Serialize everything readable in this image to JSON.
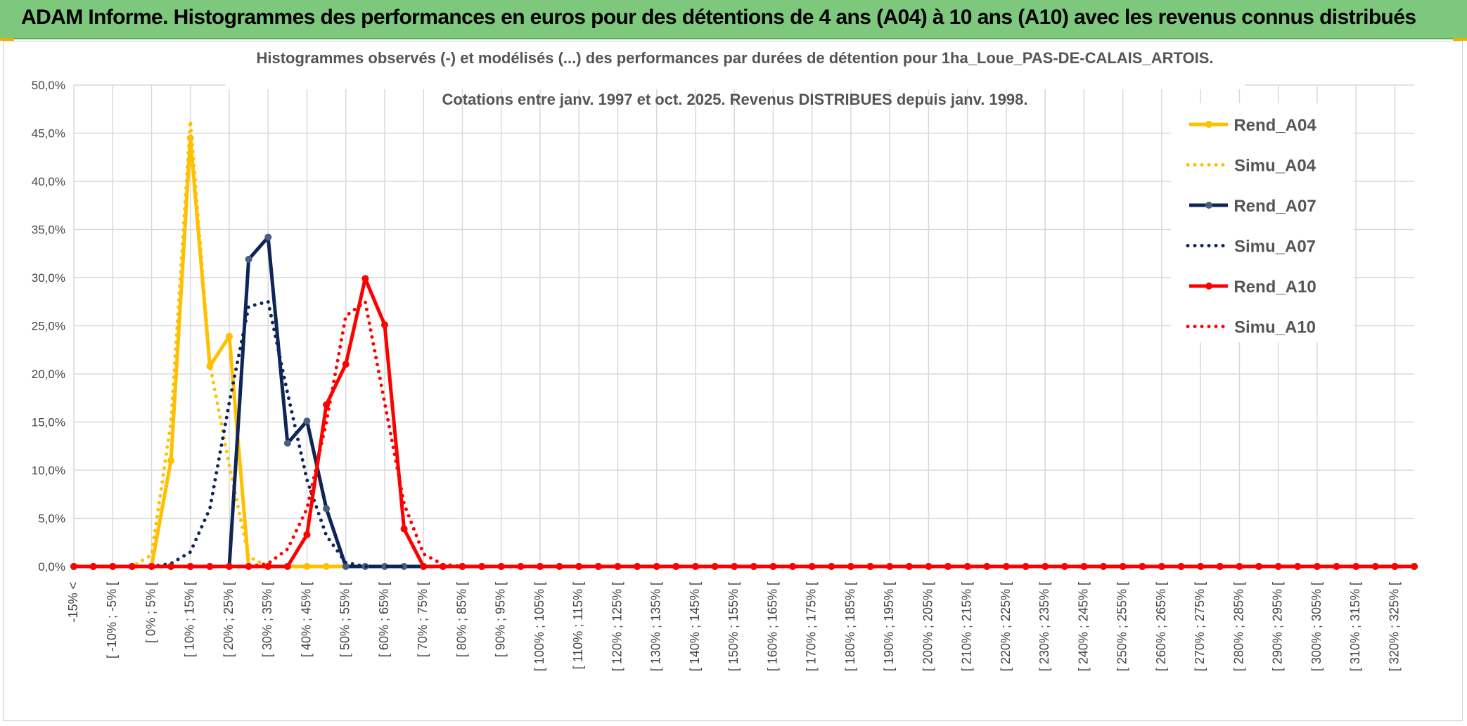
{
  "banner": {
    "title": "ADAM Informe. Histogrammes des performances en euros pour des détentions de 4 ans (A04) à 10 ans (A10) avec les revenus connus distribués"
  },
  "chart_data": {
    "type": "line",
    "title": "Histogrammes observés (-) et modélisés (...) des performances par durées de détention pour 1ha_Loue_PAS-DE-CALAIS_ARTOIS.",
    "subtitle": "Cotations entre janv. 1997 et oct. 2025. Revenus DISTRIBUES depuis janv. 1998.",
    "xlabel": "",
    "ylabel": "",
    "ylim": [
      0,
      50
    ],
    "yticks": [
      "0,0%",
      "5,0%",
      "10,0%",
      "15,0%",
      "20,0%",
      "25,0%",
      "30,0%",
      "35,0%",
      "40,0%",
      "45,0%",
      "50,0%"
    ],
    "grid": true,
    "legend_position": "right",
    "categories": [
      "-15% <",
      "[ -15% ; -10% [",
      "[ -10% ; -5% [",
      "[ -5% ; 0% [",
      "[ 0% ; 5% [",
      "[ 5% ; 10% [",
      "[ 10% ; 15% [",
      "[ 15% ; 20% [",
      "[ 20% ; 25% [",
      "[ 25% ; 30% [",
      "[ 30% ; 35% [",
      "[ 35% ; 40% [",
      "[ 40% ; 45% [",
      "[ 45% ; 50% [",
      "[ 50% ; 55% [",
      "[ 55% ; 60% [",
      "[ 60% ; 65% [",
      "[ 65% ; 70% [",
      "[ 70% ; 75% [",
      "[ 75% ; 80% [",
      "[ 80% ; 85% [",
      "[ 85% ; 90% [",
      "[ 90% ; 95% [",
      "[ 95% ; 100% [",
      "[ 100% ; 105% [",
      "[ 105% ; 110% [",
      "[ 110% ; 115% [",
      "[ 115% ; 120% [",
      "[ 120% ; 125% [",
      "[ 125% ; 130% [",
      "[ 130% ; 135% [",
      "[ 135% ; 140% [",
      "[ 140% ; 145% [",
      "[ 145% ; 150% [",
      "[ 150% ; 155% [",
      "[ 155% ; 160% [",
      "[ 160% ; 165% [",
      "[ 165% ; 170% [",
      "[ 170% ; 175% [",
      "[ 175% ; 180% [",
      "[ 180% ; 185% [",
      "[ 185% ; 190% [",
      "[ 190% ; 195% [",
      "[ 195% ; 200% [",
      "[ 200% ; 205% [",
      "[ 205% ; 210% [",
      "[ 210% ; 215% [",
      "[ 215% ; 220% [",
      "[ 220% ; 225% [",
      "[ 225% ; 230% [",
      "[ 230% ; 235% [",
      "[ 235% ; 240% [",
      "[ 240% ; 245% [",
      "[ 245% ; 250% [",
      "[ 250% ; 255% [",
      "[ 255% ; 260% [",
      "[ 260% ; 265% [",
      "[ 265% ; 270% [",
      "[ 270% ; 275% [",
      "[ 275% ; 280% [",
      "[ 280% ; 285% [",
      "[ 285% ; 290% [",
      "[ 290% ; 295% [",
      "[ 295% ; 300% [",
      "[ 300% ; 305% [",
      "[ 305% ; 310% [",
      "[ 310% ; 315% [",
      "[ 315% ; 320% [",
      "[ 320% ; 325% [",
      "[ 325% ; 330% ["
    ],
    "visible_category_labels": [
      "-15% <",
      "[ -10% ; -5% [",
      "[ 0% ; 5% [",
      "[ 10% ; 15% [",
      "[ 20% ; 25% [",
      "[ 30% ; 35% [",
      "[ 40% ; 45% [",
      "[ 50% ; 55% [",
      "[ 60% ; 65% [",
      "[ 70% ; 75% [",
      "[ 80% ; 85% [",
      "[ 90% ; 95% [",
      "[ 100% ; 105% [",
      "[ 110% ; 115% [",
      "[ 120% ; 125% [",
      "[ 130% ; 135% [",
      "[ 140% ; 145% [",
      "[ 150% ; 155% [",
      "[ 160% ; 165% [",
      "[ 170% ; 175% [",
      "[ 180% ; 185% [",
      "[ 190% ; 195% [",
      "[ 200% ; 205% [",
      "[ 210% ; 215% [",
      "[ 220% ; 225% [",
      "[ 230% ; 235% [",
      "[ 240% ; 245% [",
      "[ 250% ; 255% [",
      "[ 260% ; 265% [",
      "[ 270% ; 275% [",
      "[ 280% ; 285% [",
      "[ 290% ; 295% [",
      "[ 300% ; 305% [",
      "[ 310% ; 315% [",
      "[ 320% ; 325% ["
    ],
    "series": [
      {
        "name": "Rend_A04",
        "style": "solid",
        "color": "#ffc000",
        "values": [
          0,
          0,
          0,
          0,
          0,
          11,
          44.5,
          20.8,
          23.9,
          0,
          0,
          0,
          0,
          0,
          0,
          0,
          0,
          0,
          0,
          0,
          0,
          0,
          0,
          0,
          0,
          0,
          0,
          0,
          0,
          0,
          0,
          0,
          0,
          0,
          0,
          0,
          0,
          0,
          0,
          0,
          0,
          0,
          0,
          0,
          0,
          0,
          0,
          0,
          0,
          0,
          0,
          0,
          0,
          0,
          0,
          0,
          0,
          0,
          0,
          0,
          0,
          0,
          0,
          0,
          0,
          0,
          0,
          0,
          0,
          0
        ]
      },
      {
        "name": "Simu_A04",
        "style": "dotted",
        "color": "#ffc000",
        "values": [
          0,
          0,
          0,
          0,
          1.2,
          15,
          46.3,
          21,
          10.5,
          1,
          0,
          0,
          0,
          0,
          0,
          0,
          0,
          0,
          0,
          0,
          0,
          0,
          0,
          0,
          0,
          0,
          0,
          0,
          0,
          0,
          0,
          0,
          0,
          0,
          0,
          0,
          0,
          0,
          0,
          0,
          0,
          0,
          0,
          0,
          0,
          0,
          0,
          0,
          0,
          0,
          0,
          0,
          0,
          0,
          0,
          0,
          0,
          0,
          0,
          0,
          0,
          0,
          0,
          0,
          0,
          0,
          0,
          0,
          0,
          0
        ]
      },
      {
        "name": "Rend_A07",
        "style": "solid",
        "color": "#0d2557",
        "values": [
          0,
          0,
          0,
          0,
          0,
          0,
          0,
          0,
          0,
          31.9,
          34.2,
          12.8,
          15.1,
          6,
          0,
          0,
          0,
          0,
          0,
          0,
          0,
          0,
          0,
          0,
          0,
          0,
          0,
          0,
          0,
          0,
          0,
          0,
          0,
          0,
          0,
          0,
          0,
          0,
          0,
          0,
          0,
          0,
          0,
          0,
          0,
          0,
          0,
          0,
          0,
          0,
          0,
          0,
          0,
          0,
          0,
          0,
          0,
          0,
          0,
          0,
          0,
          0,
          0,
          0,
          0,
          0,
          0,
          0,
          0,
          0
        ]
      },
      {
        "name": "Simu_A07",
        "style": "dotted",
        "color": "#0d2557",
        "values": [
          0,
          0,
          0,
          0,
          0,
          0.3,
          1.5,
          6,
          17,
          27,
          27.5,
          18,
          9,
          3.2,
          0.4,
          0,
          0,
          0,
          0,
          0,
          0,
          0,
          0,
          0,
          0,
          0,
          0,
          0,
          0,
          0,
          0,
          0,
          0,
          0,
          0,
          0,
          0,
          0,
          0,
          0,
          0,
          0,
          0,
          0,
          0,
          0,
          0,
          0,
          0,
          0,
          0,
          0,
          0,
          0,
          0,
          0,
          0,
          0,
          0,
          0,
          0,
          0,
          0,
          0,
          0,
          0,
          0,
          0,
          0,
          0
        ]
      },
      {
        "name": "Rend_A10",
        "style": "solid",
        "color": "#ff0000",
        "values": [
          0,
          0,
          0,
          0,
          0,
          0,
          0,
          0,
          0,
          0,
          0,
          0,
          3.3,
          16.8,
          21,
          29.9,
          25.1,
          3.9,
          0,
          0,
          0,
          0,
          0,
          0,
          0,
          0,
          0,
          0,
          0,
          0,
          0,
          0,
          0,
          0,
          0,
          0,
          0,
          0,
          0,
          0,
          0,
          0,
          0,
          0,
          0,
          0,
          0,
          0,
          0,
          0,
          0,
          0,
          0,
          0,
          0,
          0,
          0,
          0,
          0,
          0,
          0,
          0,
          0,
          0,
          0,
          0,
          0,
          0,
          0,
          0
        ]
      },
      {
        "name": "Simu_A10",
        "style": "dotted",
        "color": "#ff0000",
        "values": [
          0,
          0,
          0,
          0,
          0,
          0,
          0,
          0,
          0,
          0,
          0.3,
          1.8,
          6,
          15,
          26,
          27.5,
          17,
          6.5,
          1.3,
          0.2,
          0,
          0,
          0,
          0,
          0,
          0,
          0,
          0,
          0,
          0,
          0,
          0,
          0,
          0,
          0,
          0,
          0,
          0,
          0,
          0,
          0,
          0,
          0,
          0,
          0,
          0,
          0,
          0,
          0,
          0,
          0,
          0,
          0,
          0,
          0,
          0,
          0,
          0,
          0,
          0,
          0,
          0,
          0,
          0,
          0,
          0,
          0,
          0,
          0,
          0
        ]
      }
    ]
  }
}
